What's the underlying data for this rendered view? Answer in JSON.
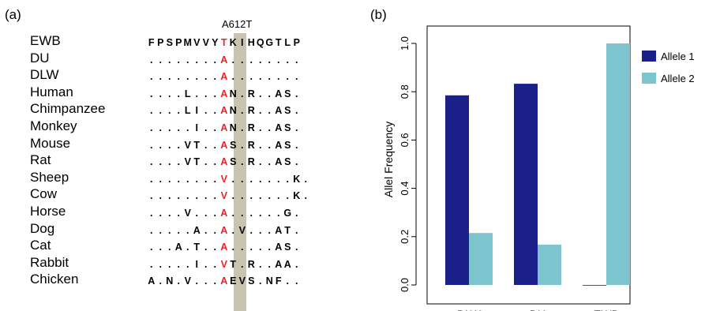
{
  "panel_a": {
    "label": "(a)",
    "mutation_label": "A612T",
    "rows": [
      {
        "species": "EWB",
        "seq": "FPSPMVVYTKIHQGTLP"
      },
      {
        "species": "DU",
        "seq": "........A........"
      },
      {
        "species": "DLW",
        "seq": "........A........"
      },
      {
        "species": "Human",
        "seq": "....L...AN.R..AS."
      },
      {
        "species": "Chimpanzee",
        "seq": "....LI..AN.R..AS."
      },
      {
        "species": "Monkey",
        "seq": ".....I..AN.R..AS."
      },
      {
        "species": "Mouse",
        "seq": "....VT..AS.R..AS."
      },
      {
        "species": "Rat",
        "seq": "....VT..AS.R..AS."
      },
      {
        "species": "Sheep",
        "seq": "........V.......K."
      },
      {
        "species": "Cow",
        "seq": "........V.......K."
      },
      {
        "species": "Horse",
        "seq": "....V...A......G."
      },
      {
        "species": "Dog",
        "seq": ".....A..A.V...AT."
      },
      {
        "species": "Cat",
        "seq": "...A.T..A.....AS."
      },
      {
        "species": "Rabbit",
        "seq": ".....I..VT.R..AA."
      },
      {
        "species": "Chicken",
        "seq": "A.N.V...AEVS.NF.."
      }
    ],
    "highlight_index": 8,
    "colors": {
      "highlight_bg": "#c9c3b0",
      "mutation_text": "#e8242b"
    }
  },
  "chart_data": {
    "panel_label": "(b)",
    "type": "bar",
    "categories": [
      "DLW",
      "DU",
      "EWB"
    ],
    "series": [
      {
        "name": "Allele 1",
        "values": [
          0.785,
          0.833,
          0.0
        ],
        "color": "#1b1f8a"
      },
      {
        "name": "Allele 2",
        "values": [
          0.215,
          0.167,
          1.0
        ],
        "color": "#7ec4cf"
      }
    ],
    "ylabel": "Allel Frequency",
    "xlabel": "",
    "ylim": [
      0,
      1.0
    ],
    "yticks": [
      "0.0",
      "0.2",
      "0.4",
      "0.6",
      "0.8",
      "1.0"
    ],
    "legend_position": "right"
  }
}
